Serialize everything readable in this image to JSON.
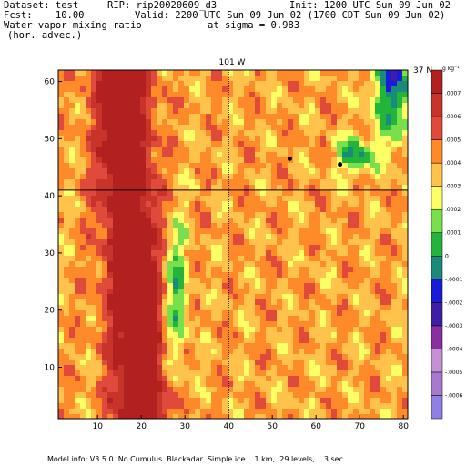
{
  "header": {
    "dataset_label": "Dataset: test",
    "rip_label": "RIP: rip20020609_d3",
    "init_label": "Init: 1200 UTC Sun 09 Jun 02",
    "fcst_label": "Fcst:    10.00",
    "valid_label": "Valid: 2200 UTC Sun 09 Jun 02 (1700 CDT Sun 09 Jun 02)",
    "field_name": "Water vapor mixing ratio",
    "field_level": "at sigma = 0.983",
    "field_note": "(hor. advec.)"
  },
  "plot": {
    "top_label": "101 W",
    "right_label": "37 N",
    "cbar_unit": "g kg⁻¹"
  },
  "footer": {
    "text": "Model info: V3.5.0  No Cumulus  Blackadar  Simple ice    1 km,  29 levels,    3 sec"
  },
  "chart_data": {
    "type": "heatmap",
    "title": "Water vapor mixing ratio",
    "x_ticks": [
      10,
      20,
      30,
      40,
      50,
      60,
      70,
      80
    ],
    "y_ticks": [
      10,
      20,
      30,
      40,
      50,
      60
    ],
    "xlim": [
      1,
      81
    ],
    "ylim": [
      1,
      62
    ],
    "meridian_x": 40,
    "parallel_y": 41,
    "colorbar": {
      "levels": [
        "-.0006",
        "-.0005",
        "-.0004",
        "-.0003",
        "-.0002",
        "-.0001",
        "0",
        ".0001",
        ".0002",
        ".0003",
        ".0004",
        ".0005",
        ".0006",
        ".0007"
      ],
      "colors": [
        "#8f7fe6",
        "#a77ad0",
        "#c690d4",
        "#8a2ea0",
        "#3e1ea6",
        "#1a1ad8",
        "#1a8a7a",
        "#22b53a",
        "#78e04a",
        "#ffff66",
        "#ffc24a",
        "#ff8a2a",
        "#e04a3a",
        "#c8332a",
        "#b32020"
      ]
    },
    "markers": [
      [
        54,
        46.5
      ],
      [
        65.5,
        45.5
      ]
    ]
  }
}
